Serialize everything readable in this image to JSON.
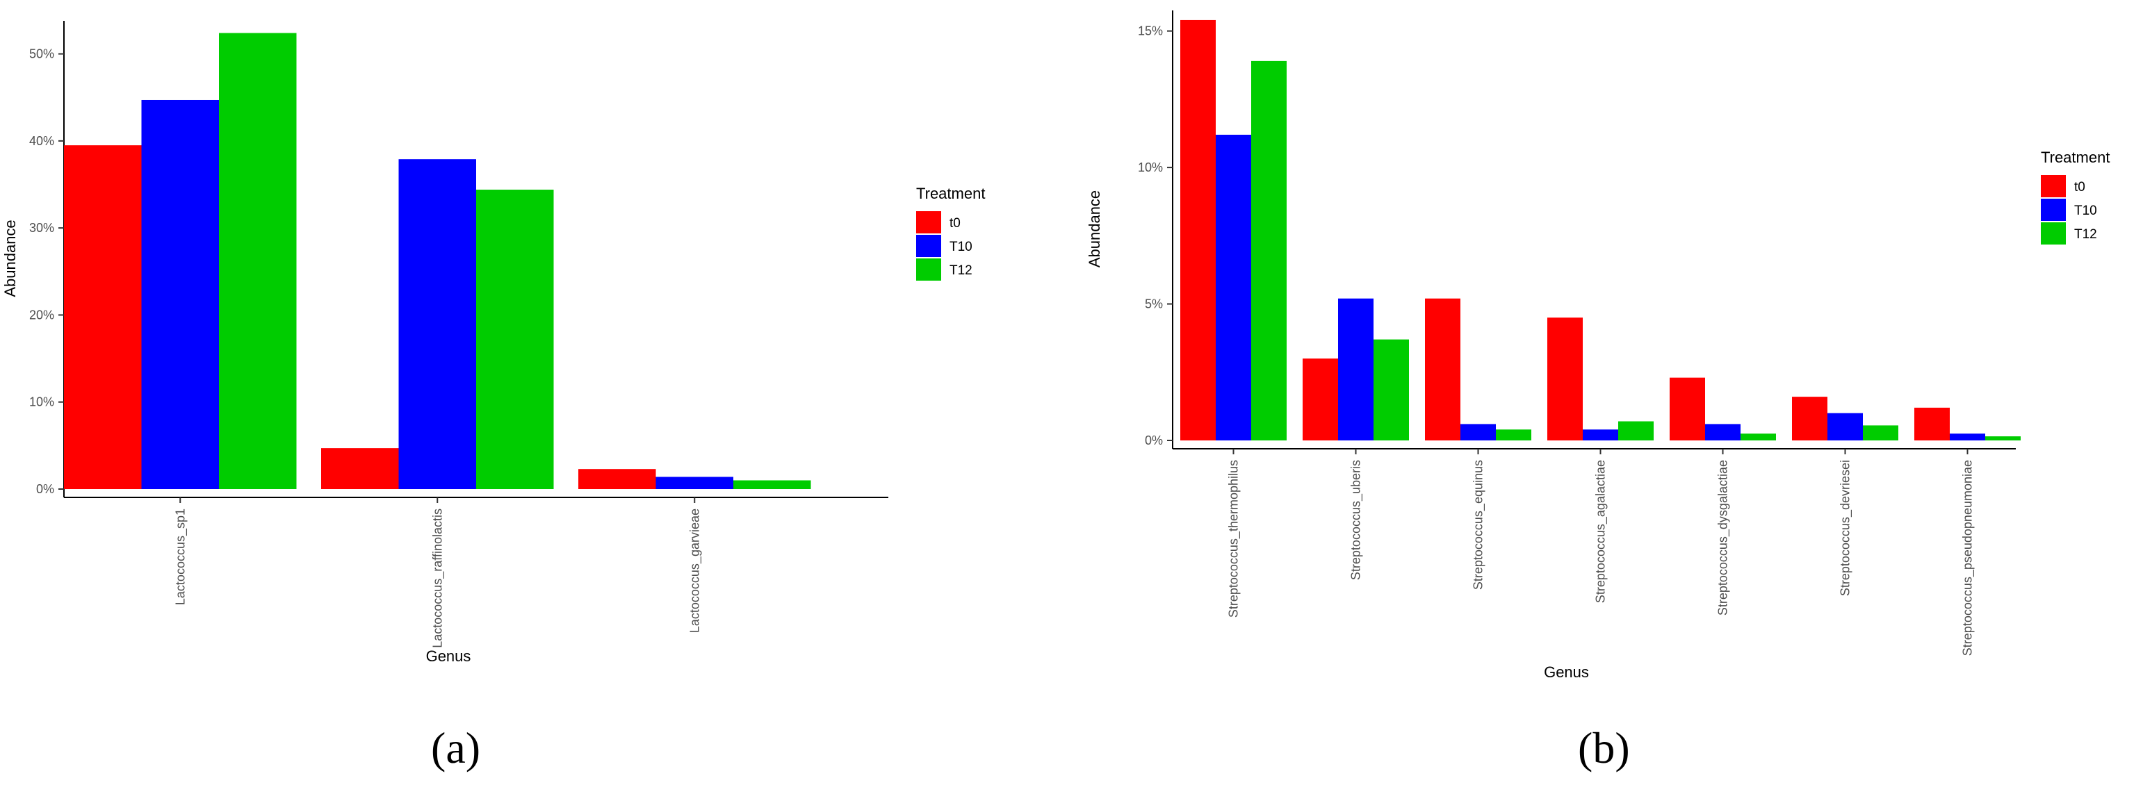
{
  "colors": {
    "t0": "#ff0000",
    "T10": "#0000ff",
    "T12": "#00cc00"
  },
  "chart_data": [
    {
      "type": "bar",
      "panel_label": "(a)",
      "xlabel": "Genus",
      "ylabel": "Abundance",
      "ylim": [
        0,
        53
      ],
      "yticks": [
        0,
        10,
        20,
        30,
        40,
        50
      ],
      "ytick_labels": [
        "0%",
        "10%",
        "20%",
        "30%",
        "40%",
        "50%"
      ],
      "legend_title": "Treatment",
      "legend_position": "right",
      "categories": [
        "Lactococcus_sp1",
        "Lactococcus_raffinolactis",
        "Lactococcus_garvieae"
      ],
      "series": [
        {
          "name": "t0",
          "values": [
            39.5,
            4.7,
            2.3
          ]
        },
        {
          "name": "T10",
          "values": [
            44.7,
            37.9,
            1.4
          ]
        },
        {
          "name": "T12",
          "values": [
            52.4,
            34.4,
            1.0
          ]
        }
      ]
    },
    {
      "type": "bar",
      "panel_label": "(b)",
      "xlabel": "Genus",
      "ylabel": "Abundance",
      "ylim": [
        0,
        15.5
      ],
      "yticks": [
        0,
        5,
        10,
        15
      ],
      "ytick_labels": [
        "0%",
        "5%",
        "10%",
        "15%"
      ],
      "legend_title": "Treatment",
      "legend_position": "right",
      "categories": [
        "Streptococcus_thermophilus",
        "Streptococcus_uberis",
        "Streptococcus_equinus",
        "Streptococcus_agalactiae",
        "Streptococcus_dysgalactiae",
        "Streptococcus_devriesei",
        "Streptococcus_pseudopneumoniae"
      ],
      "series": [
        {
          "name": "t0",
          "values": [
            15.4,
            3.0,
            5.2,
            4.5,
            2.3,
            1.6,
            1.2
          ]
        },
        {
          "name": "T10",
          "values": [
            11.2,
            5.2,
            0.6,
            0.4,
            0.6,
            1.0,
            0.25
          ]
        },
        {
          "name": "T12",
          "values": [
            13.9,
            3.7,
            0.4,
            0.7,
            0.25,
            0.55,
            0.15
          ]
        }
      ]
    }
  ]
}
